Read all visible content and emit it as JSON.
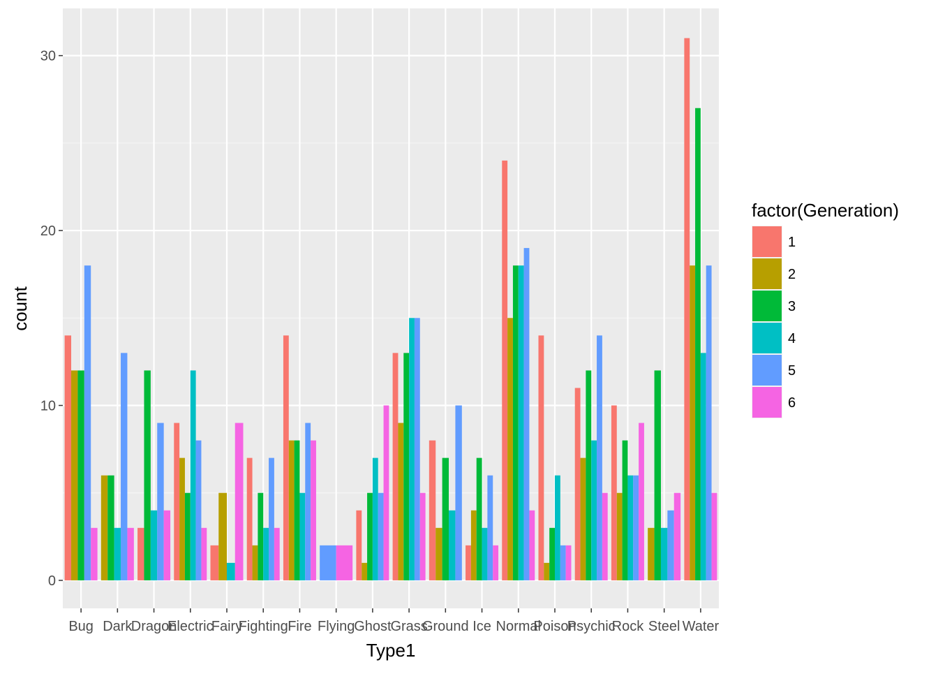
{
  "chart_data": {
    "type": "bar",
    "xlabel": "Type1",
    "ylabel": "count",
    "ylim": [
      -1.6,
      32.7
    ],
    "y_ticks": [
      0,
      10,
      20,
      30
    ],
    "grid": true,
    "legend": {
      "title": "factor(Generation)",
      "placement": "right"
    },
    "categories": [
      "Bug",
      "Dark",
      "Dragon",
      "Electric",
      "Fairy",
      "Fighting",
      "Fire",
      "Flying",
      "Ghost",
      "Grass",
      "Ground",
      "Ice",
      "Normal",
      "Poison",
      "Psychic",
      "Rock",
      "Steel",
      "Water"
    ],
    "series": [
      {
        "name": "1",
        "color": "#F8766D",
        "values": [
          14,
          0,
          3,
          9,
          2,
          7,
          14,
          0,
          4,
          13,
          8,
          2,
          24,
          14,
          11,
          10,
          0,
          31
        ]
      },
      {
        "name": "2",
        "color": "#B79F00",
        "values": [
          12,
          6,
          0,
          7,
          5,
          2,
          8,
          0,
          1,
          9,
          3,
          4,
          15,
          1,
          7,
          5,
          3,
          18
        ]
      },
      {
        "name": "3",
        "color": "#00BA38",
        "values": [
          12,
          6,
          12,
          5,
          0,
          5,
          8,
          0,
          5,
          13,
          7,
          7,
          18,
          3,
          12,
          8,
          12,
          27
        ]
      },
      {
        "name": "4",
        "color": "#00BFC4",
        "values": [
          0,
          3,
          4,
          12,
          1,
          3,
          5,
          0,
          7,
          15,
          4,
          3,
          18,
          6,
          8,
          6,
          3,
          13
        ]
      },
      {
        "name": "5",
        "color": "#619CFF",
        "values": [
          18,
          13,
          9,
          8,
          0,
          7,
          9,
          2,
          5,
          15,
          10,
          6,
          19,
          2,
          14,
          6,
          4,
          18
        ]
      },
      {
        "name": "6",
        "color": "#F564E3",
        "values": [
          3,
          3,
          4,
          3,
          9,
          3,
          8,
          2,
          10,
          5,
          0,
          2,
          4,
          2,
          5,
          9,
          5,
          5
        ]
      }
    ],
    "present": [
      [
        1,
        1,
        1,
        0,
        1,
        1
      ],
      [
        0,
        1,
        1,
        1,
        1,
        1
      ],
      [
        1,
        0,
        1,
        1,
        1,
        1
      ],
      [
        1,
        1,
        1,
        1,
        1,
        1
      ],
      [
        1,
        1,
        0,
        1,
        0,
        1
      ],
      [
        1,
        1,
        1,
        1,
        1,
        1
      ],
      [
        1,
        1,
        1,
        1,
        1,
        1
      ],
      [
        0,
        0,
        0,
        0,
        1,
        1
      ],
      [
        1,
        1,
        1,
        1,
        1,
        1
      ],
      [
        1,
        1,
        1,
        1,
        1,
        1
      ],
      [
        1,
        1,
        1,
        1,
        1,
        0
      ],
      [
        1,
        1,
        1,
        1,
        1,
        1
      ],
      [
        1,
        1,
        1,
        1,
        1,
        1
      ],
      [
        1,
        1,
        1,
        1,
        1,
        1
      ],
      [
        1,
        1,
        1,
        1,
        1,
        1
      ],
      [
        1,
        1,
        1,
        1,
        1,
        1
      ],
      [
        0,
        1,
        1,
        1,
        1,
        1
      ],
      [
        1,
        1,
        1,
        1,
        1,
        1
      ]
    ]
  }
}
